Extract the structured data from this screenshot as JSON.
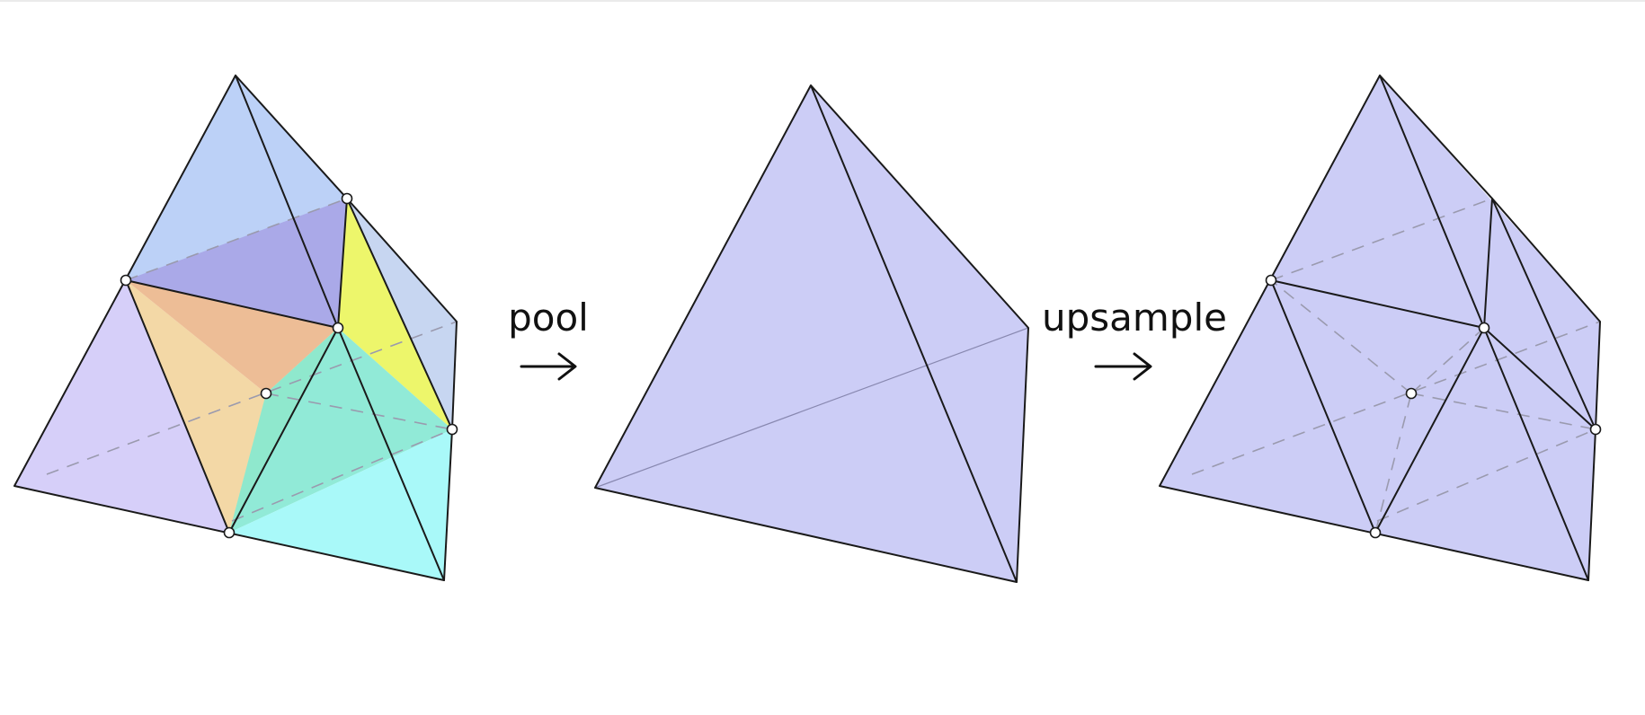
{
  "labels": {
    "pool": "pool",
    "upsample": "upsample"
  },
  "colors": {
    "background": "#ffffff",
    "outline": "#1a1a1a",
    "hidden_edge": "#9a9aae",
    "pooled_fill": "#c8c9f5",
    "sub_blue": "#b6cdf6",
    "sub_violet": "#a8a5e6",
    "sub_lavender": "#d2cbf8",
    "sub_orange": "#ecb78d",
    "sub_tan": "#f2d59e",
    "sub_yellow": "#ecf55e",
    "sub_olive": "#d9d97a",
    "sub_teal": "#88e8d4",
    "sub_cyan": "#a2f8f8",
    "sub_steel": "#c2d2f0"
  }
}
